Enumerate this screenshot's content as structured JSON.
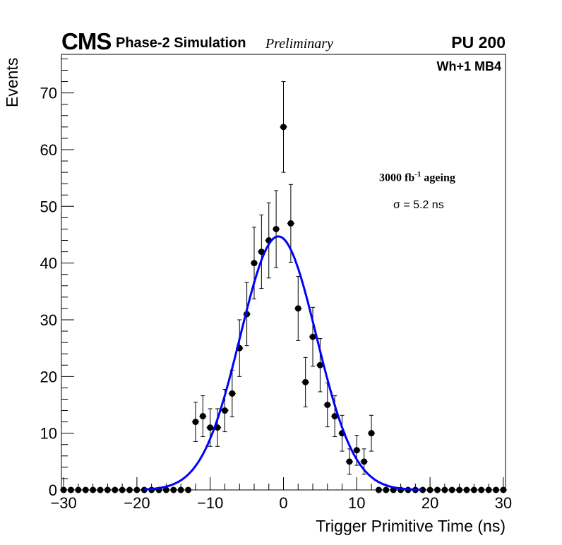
{
  "header": {
    "cms": "CMS",
    "sim": "Phase-2 Simulation",
    "prelim": "Preliminary",
    "pu": "PU 200",
    "station": "Wh+1 MB4"
  },
  "annotations": {
    "ageing_base": "3000 fb",
    "ageing_sup": "-1",
    "ageing_rest": " ageing",
    "sigma": "σ = 5.2 ns"
  },
  "chart_data": {
    "type": "scatter",
    "title": "",
    "xlabel": "Trigger Primitive Time (ns)",
    "ylabel": "Events",
    "xlim": [
      -30.3,
      30.3
    ],
    "ylim": [
      0,
      76.8
    ],
    "xticks": [
      -30,
      -20,
      -10,
      0,
      10,
      20,
      30
    ],
    "xtick_labels": [
      "−30",
      "−20",
      "−10",
      "0",
      "10",
      "20",
      "30"
    ],
    "yticks": [
      0,
      10,
      20,
      30,
      40,
      50,
      60,
      70
    ],
    "ytick_labels": [
      "0",
      "10",
      "20",
      "30",
      "40",
      "50",
      "60",
      "70"
    ],
    "points": {
      "x": [
        -30,
        -29,
        -28,
        -27,
        -26,
        -25,
        -24,
        -23,
        -22,
        -21,
        -20,
        -19,
        -18,
        -17,
        -16,
        -15,
        -14,
        -13,
        -12,
        -11,
        -10,
        -9,
        -8,
        -7,
        -6,
        -5,
        -4,
        -3,
        -2,
        -1,
        0,
        1,
        2,
        3,
        4,
        5,
        6,
        7,
        8,
        9,
        10,
        11,
        12,
        13,
        14,
        15,
        16,
        17,
        18,
        19,
        20,
        21,
        22,
        23,
        24,
        25,
        26,
        27,
        28,
        29,
        30
      ],
      "y": [
        0,
        0,
        0,
        0,
        0,
        0,
        0,
        0,
        0,
        0,
        0,
        0,
        0,
        0,
        0,
        0,
        0,
        0,
        12,
        13,
        11,
        11,
        14,
        17,
        25,
        31,
        40,
        42,
        44,
        46,
        64,
        47,
        32,
        19,
        27,
        22,
        15,
        13,
        10,
        5,
        7,
        5,
        10,
        0,
        0,
        0,
        0,
        0,
        0,
        0,
        0,
        0,
        0,
        0,
        0,
        0,
        0,
        0,
        0,
        0,
        0
      ],
      "error": "sqrt"
    },
    "fit": {
      "type": "gaussian",
      "amplitude": 44.7,
      "mean": -0.7,
      "sigma": 5.2,
      "range": [
        -19,
        19
      ],
      "color": "#0000ff"
    }
  }
}
